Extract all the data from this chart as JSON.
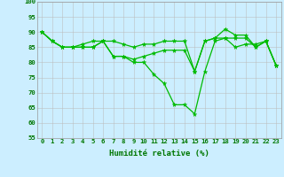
{
  "xlabel": "Humidité relative (%)",
  "background_color": "#cceeff",
  "grid_color": "#bbbbbb",
  "line_color": "#00bb00",
  "xlim": [
    -0.5,
    23.5
  ],
  "ylim": [
    55,
    100
  ],
  "yticks": [
    55,
    60,
    65,
    70,
    75,
    80,
    85,
    90,
    95,
    100
  ],
  "xticks": [
    0,
    1,
    2,
    3,
    4,
    5,
    6,
    7,
    8,
    9,
    10,
    11,
    12,
    13,
    14,
    15,
    16,
    17,
    18,
    19,
    20,
    21,
    22,
    23
  ],
  "series": [
    [
      90,
      87,
      85,
      85,
      85,
      85,
      87,
      87,
      86,
      85,
      86,
      86,
      87,
      87,
      87,
      77,
      87,
      88,
      91,
      89,
      89,
      85,
      87,
      79
    ],
    [
      90,
      87,
      85,
      85,
      85,
      85,
      87,
      82,
      82,
      81,
      82,
      83,
      84,
      84,
      84,
      77,
      87,
      88,
      88,
      88,
      88,
      85,
      87,
      79
    ],
    [
      90,
      87,
      85,
      85,
      86,
      87,
      87,
      82,
      82,
      80,
      80,
      76,
      73,
      66,
      66,
      63,
      77,
      87,
      88,
      85,
      86,
      86,
      87,
      79
    ]
  ],
  "xlabel_fontsize": 6.5,
  "tick_fontsize": 5.2,
  "tick_color": "#007700",
  "label_color": "#007700"
}
